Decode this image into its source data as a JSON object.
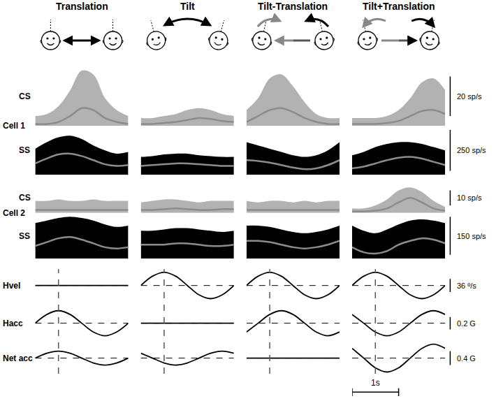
{
  "chart_data": {
    "type": "line",
    "tick_labels": false,
    "x": [
      0,
      0.25,
      0.5,
      0.75,
      1,
      1.25,
      1.5,
      1.75,
      2
    ],
    "xlim": [
      0,
      2
    ],
    "time_scale": {
      "value": 1,
      "label": "1s"
    },
    "columns": [
      {
        "title": "Translation",
        "reference_time": 0.5
      },
      {
        "title": "Tilt",
        "reference_time": 0.5
      },
      {
        "title": "Tilt-Translation",
        "reference_time": 0.5
      },
      {
        "title": "Tilt+Translation",
        "reference_time": 0.5
      }
    ],
    "rows": [
      {
        "cell": "Cell 1",
        "label": "CS",
        "kind": "spikes",
        "ylim": [
          0,
          30
        ],
        "scale": {
          "value": 20,
          "label": "20 sp/s"
        },
        "color": "rgba(0,0,0,0.3)",
        "fit_color": "#8c8c8c",
        "panels": [
          {
            "upper": [
              5,
              6,
              10,
              18,
              28,
              26,
              14,
              8,
              5
            ],
            "fit": [
              1,
              1,
              2,
              5,
              9,
              8,
              4,
              2,
              1
            ]
          },
          {
            "upper": [
              4,
              4,
              5,
              6,
              8,
              9,
              8,
              6,
              5
            ],
            "fit": [
              1,
              1,
              1.5,
              2,
              3,
              4,
              3.5,
              2.5,
              2
            ]
          },
          {
            "upper": [
              8,
              14,
              24,
              26,
              20,
              12,
              6,
              4,
              4
            ],
            "fit": [
              2,
              5,
              8,
              9,
              7,
              4,
              2,
              1,
              1
            ]
          },
          {
            "upper": [
              4,
              4,
              4,
              5,
              8,
              14,
              22,
              24,
              18
            ],
            "fit": [
              1,
              1,
              1,
              1.5,
              2.5,
              5,
              7.5,
              8,
              6
            ]
          }
        ]
      },
      {
        "label": "SS",
        "kind": "spikes",
        "ylim": [
          0,
          300
        ],
        "scale": {
          "value": 250,
          "label": "250 sp/s"
        },
        "color": "#000000",
        "fit_color": "#8c8c8c",
        "panels": [
          {
            "upper": [
              160,
              200,
              230,
              240,
              220,
              180,
              150,
              130,
              140
            ],
            "fit": [
              70,
              100,
              125,
              130,
              115,
              90,
              65,
              55,
              60
            ]
          },
          {
            "upper": [
              110,
              115,
              125,
              130,
              130,
              120,
              115,
              110,
              110
            ],
            "fit": [
              55,
              60,
              65,
              70,
              70,
              65,
              60,
              55,
              55
            ]
          },
          {
            "upper": [
              200,
              180,
              160,
              140,
              120,
              110,
              120,
              150,
              200
            ],
            "fit": [
              90,
              85,
              75,
              60,
              45,
              35,
              40,
              60,
              90
            ]
          },
          {
            "upper": [
              120,
              140,
              170,
              190,
              200,
              200,
              190,
              170,
              150
            ],
            "fit": [
              40,
              50,
              70,
              90,
              105,
              110,
              100,
              80,
              60
            ]
          }
        ]
      },
      {
        "cell": "Cell 2",
        "label": "CS",
        "kind": "spikes",
        "ylim": [
          0,
          20
        ],
        "scale": {
          "value": 10,
          "label": "10 sp/s"
        },
        "color": "rgba(0,0,0,0.3)",
        "fit_color": "#8c8c8c",
        "panels": [
          {
            "upper": [
              8,
              8,
              9,
              8,
              8,
              9,
              8,
              8,
              8
            ],
            "fit": [
              2,
              2,
              2,
              2,
              2,
              2,
              2,
              2,
              2
            ]
          },
          {
            "upper": [
              7,
              8,
              9,
              9,
              8,
              7,
              8,
              8,
              8
            ],
            "fit": [
              2,
              2,
              2.5,
              3,
              2.5,
              2,
              2,
              2.5,
              2.5
            ]
          },
          {
            "upper": [
              8,
              7,
              8,
              8,
              7,
              8,
              7,
              8,
              8
            ],
            "fit": [
              2,
              2,
              2,
              2,
              2,
              2,
              2,
              2,
              2
            ]
          },
          {
            "upper": [
              3,
              3,
              5,
              9,
              15,
              17,
              14,
              8,
              4
            ],
            "fit": [
              1,
              1,
              1.5,
              3,
              7,
              10,
              7,
              3,
              1.5
            ]
          }
        ]
      },
      {
        "label": "SS",
        "kind": "spikes",
        "ylim": [
          0,
          180
        ],
        "scale": {
          "value": 150,
          "label": "150 sp/s"
        },
        "color": "#000000",
        "fit_color": "#8c8c8c",
        "panels": [
          {
            "upper": [
              140,
              150,
              160,
              165,
              160,
              150,
              135,
              125,
              130
            ],
            "fit": [
              50,
              65,
              80,
              85,
              75,
              60,
              45,
              40,
              45
            ]
          },
          {
            "upper": [
              110,
              110,
              115,
              120,
              120,
              115,
              110,
              105,
              110
            ],
            "fit": [
              55,
              55,
              55,
              60,
              60,
              55,
              50,
              50,
              55
            ]
          },
          {
            "upper": [
              130,
              130,
              125,
              115,
              105,
              100,
              105,
              115,
              130
            ],
            "fit": [
              70,
              70,
              65,
              55,
              45,
              40,
              45,
              55,
              70
            ]
          },
          {
            "upper": [
              130,
              110,
              100,
              115,
              135,
              150,
              155,
              150,
              140
            ],
            "fit": [
              45,
              25,
              20,
              30,
              55,
              70,
              80,
              75,
              60
            ]
          }
        ]
      },
      {
        "label": "Hvel",
        "kind": "signal",
        "ylim": [
          -45,
          45
        ],
        "scale": {
          "value": 36,
          "label": "36 º/s"
        },
        "color": "#000000",
        "panels": [
          {
            "values": [
              0,
              0,
              0,
              0,
              0,
              0,
              0,
              0,
              0
            ]
          },
          {
            "values": [
              0,
              25.5,
              36,
              25.5,
              0,
              -25.5,
              -36,
              -25.5,
              0
            ]
          },
          {
            "values": [
              0,
              25.5,
              36,
              25.5,
              0,
              -25.5,
              -36,
              -25.5,
              0
            ]
          },
          {
            "values": [
              0,
              25.5,
              36,
              25.5,
              0,
              -25.5,
              -36,
              -25.5,
              0
            ]
          }
        ]
      },
      {
        "label": "Hacc",
        "kind": "signal",
        "ylim": [
          -0.25,
          0.25
        ],
        "scale": {
          "value": 0.2,
          "label": "0.2 G"
        },
        "color": "#000000",
        "panels": [
          {
            "values": [
              0,
              0.14,
              0.2,
              0.14,
              0,
              -0.14,
              -0.2,
              -0.14,
              0
            ]
          },
          {
            "values": [
              0,
              0,
              0,
              0,
              0,
              0,
              0,
              0,
              0
            ]
          },
          {
            "values": [
              -0.14,
              0,
              0.14,
              0.2,
              0.14,
              0,
              -0.14,
              -0.2,
              -0.14
            ]
          },
          {
            "values": [
              0.14,
              0,
              -0.14,
              -0.2,
              -0.14,
              0,
              0.14,
              0.2,
              0.14
            ]
          }
        ]
      },
      {
        "label": "Net acc",
        "kind": "signal",
        "ylim": [
          -0.45,
          0.45
        ],
        "scale": {
          "value": 0.4,
          "label": "0.4 G"
        },
        "color": "#000000",
        "panels": [
          {
            "values": [
              0,
              0.14,
              0.2,
              0.14,
              0,
              -0.14,
              -0.2,
              -0.14,
              0
            ]
          },
          {
            "values": [
              0.14,
              0,
              -0.14,
              -0.2,
              -0.14,
              0,
              0.14,
              0.2,
              0.14
            ]
          },
          {
            "values": [
              0,
              0,
              0,
              0,
              0,
              0,
              0,
              0,
              0
            ]
          },
          {
            "values": [
              0.28,
              0,
              -0.28,
              -0.4,
              -0.28,
              0,
              0.28,
              0.4,
              0.28
            ]
          }
        ]
      }
    ]
  }
}
